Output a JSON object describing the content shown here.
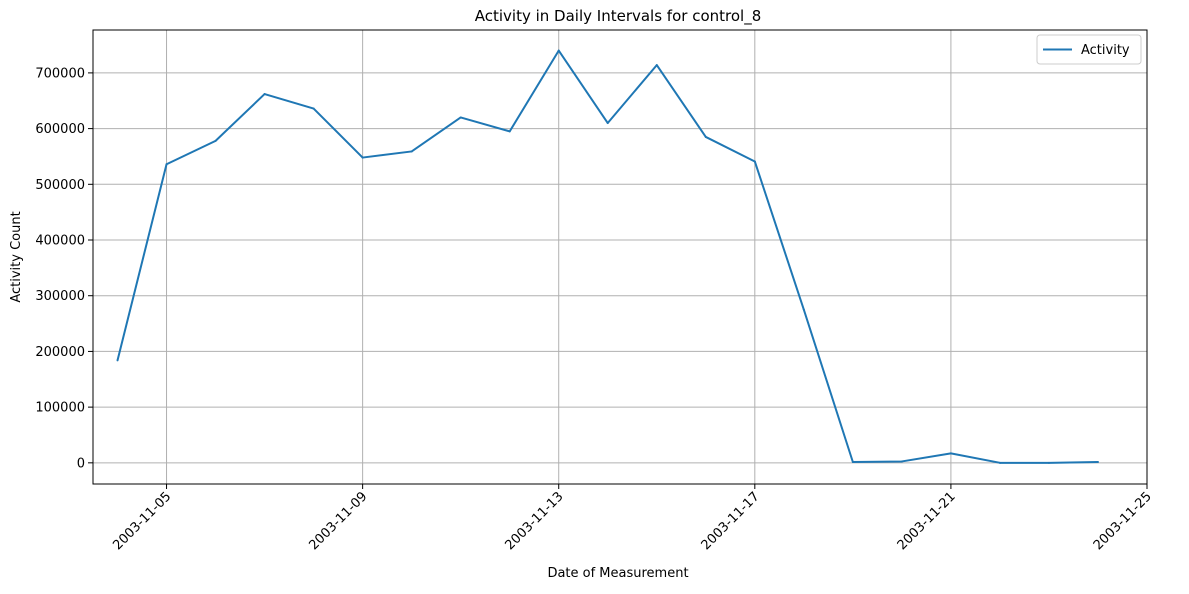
{
  "chart_data": {
    "type": "line",
    "title": "Activity in Daily Intervals for control_8",
    "xlabel": "Date of Measurement",
    "ylabel": "Activity Count",
    "x_ticks": [
      "2003-11-05",
      "2003-11-09",
      "2003-11-13",
      "2003-11-17",
      "2003-11-21",
      "2003-11-25"
    ],
    "y_ticks": [
      0,
      100000,
      200000,
      300000,
      400000,
      500000,
      600000,
      700000
    ],
    "y_tick_labels": [
      "0",
      "100000",
      "200000",
      "300000",
      "400000",
      "500000",
      "600000",
      "700000"
    ],
    "xlim": [
      "2003-11-03T12:00",
      "2003-11-25"
    ],
    "ylim": [
      -38000,
      777000
    ],
    "grid": true,
    "legend_position": "top-right",
    "series": [
      {
        "name": "Activity",
        "color": "#1f77b4",
        "x": [
          "2003-11-04",
          "2003-11-05",
          "2003-11-06",
          "2003-11-07",
          "2003-11-08",
          "2003-11-09",
          "2003-11-10",
          "2003-11-11",
          "2003-11-12",
          "2003-11-13",
          "2003-11-14",
          "2003-11-15",
          "2003-11-16",
          "2003-11-17",
          "2003-11-18",
          "2003-11-19",
          "2003-11-20",
          "2003-11-21",
          "2003-11-22",
          "2003-11-23",
          "2003-11-24"
        ],
        "values": [
          184000,
          536000,
          578000,
          662000,
          636000,
          548000,
          559000,
          620000,
          595000,
          740000,
          610000,
          714000,
          585000,
          541000,
          275000,
          1500,
          2500,
          17000,
          0,
          0,
          1500
        ]
      }
    ]
  }
}
